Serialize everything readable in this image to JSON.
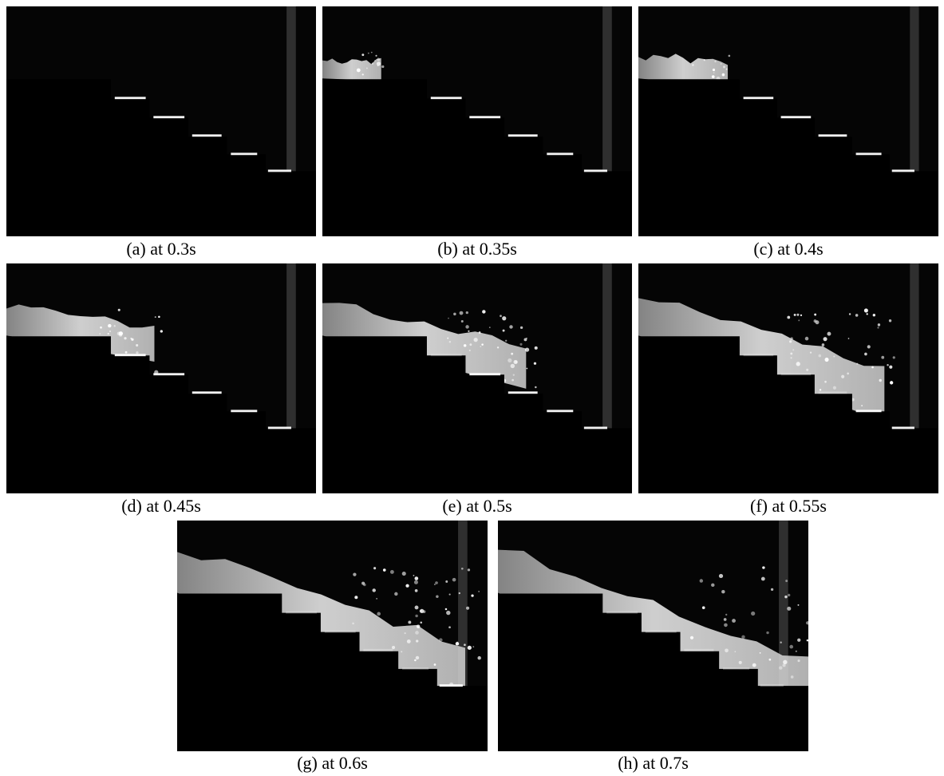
{
  "frames": [
    {
      "id": "a",
      "caption": "(a) at 0.3s",
      "flow": 0.0
    },
    {
      "id": "b",
      "caption": "(b) at 0.35s",
      "flow": 0.1
    },
    {
      "id": "c",
      "caption": "(c) at 0.4s",
      "flow": 0.22
    },
    {
      "id": "d",
      "caption": "(d) at 0.45s",
      "flow": 0.42
    },
    {
      "id": "e",
      "caption": "(e) at 0.5s",
      "flow": 0.62
    },
    {
      "id": "f",
      "caption": "(f) at 0.55s",
      "flow": 0.8
    },
    {
      "id": "g",
      "caption": "(g) at 0.6s",
      "flow": 0.92
    },
    {
      "id": "h",
      "caption": "(h) at 0.7s",
      "flow": 1.0
    }
  ],
  "colors": {
    "background": "#050505",
    "water": "#f2f2f2",
    "steps": "#000000",
    "edge_glint": "#ffffff"
  }
}
